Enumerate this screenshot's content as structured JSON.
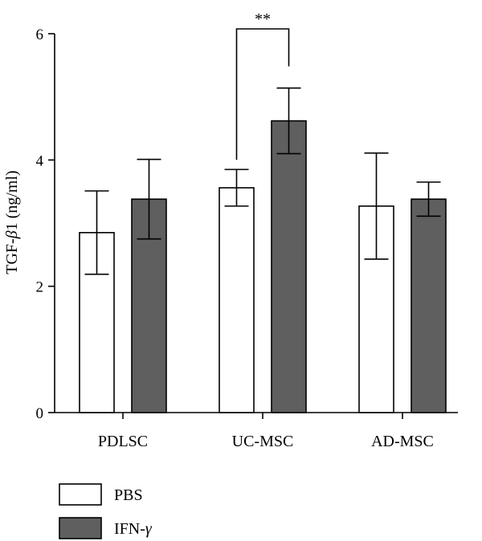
{
  "chart_data": {
    "type": "bar",
    "ylabel_main": "TGF-",
    "ylabel_greek": "β",
    "ylabel_rest": "1 (ng/ml)",
    "ylim": [
      0,
      6
    ],
    "yticks": [
      "0",
      "2",
      "4",
      "6"
    ],
    "categories": [
      "PDLSC",
      "UC-MSC",
      "AD-MSC"
    ],
    "series": [
      {
        "name": "PBS",
        "color": "#ffffff",
        "values": [
          2.85,
          3.56,
          3.27
        ],
        "errors": [
          0.66,
          0.29,
          0.84
        ]
      },
      {
        "name_main": "IFN-",
        "name_greek": "γ",
        "color": "#5f5f5f",
        "values": [
          3.38,
          4.62,
          3.38
        ],
        "errors": [
          0.63,
          0.52,
          0.27
        ]
      }
    ],
    "significance": {
      "label": "**",
      "category": "UC-MSC"
    },
    "legend": "bottom-left"
  }
}
